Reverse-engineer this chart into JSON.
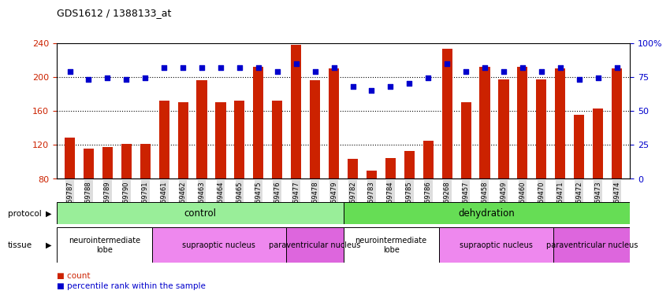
{
  "title": "GDS1612 / 1388133_at",
  "samples": [
    "GSM69787",
    "GSM69788",
    "GSM69789",
    "GSM69790",
    "GSM69791",
    "GSM69461",
    "GSM69462",
    "GSM69463",
    "GSM69464",
    "GSM69465",
    "GSM69475",
    "GSM69476",
    "GSM69477",
    "GSM69478",
    "GSM69479",
    "GSM69782",
    "GSM69783",
    "GSM69784",
    "GSM69785",
    "GSM69786",
    "GSM69268",
    "GSM69457",
    "GSM69458",
    "GSM69459",
    "GSM69460",
    "GSM69470",
    "GSM69471",
    "GSM69472",
    "GSM69473",
    "GSM69474"
  ],
  "bar_values": [
    128,
    115,
    117,
    121,
    121,
    172,
    170,
    196,
    170,
    172,
    212,
    172,
    238,
    196,
    210,
    103,
    89,
    104,
    113,
    125,
    233,
    170,
    212,
    197,
    212,
    197,
    210,
    155,
    163,
    210
  ],
  "percentile_values": [
    79,
    73,
    74,
    73,
    74,
    82,
    82,
    82,
    82,
    82,
    82,
    79,
    85,
    79,
    82,
    68,
    65,
    68,
    70,
    74,
    85,
    79,
    82,
    79,
    82,
    79,
    82,
    73,
    74,
    82
  ],
  "bar_color": "#cc2200",
  "dot_color": "#0000cc",
  "ylim_left": [
    80,
    240
  ],
  "ylim_right": [
    0,
    100
  ],
  "yticks_left": [
    80,
    120,
    160,
    200,
    240
  ],
  "yticks_right": [
    0,
    25,
    50,
    75,
    100
  ],
  "protocol_groups": [
    {
      "label": "control",
      "start": 0,
      "end": 14,
      "color": "#99ee99"
    },
    {
      "label": "dehydration",
      "start": 15,
      "end": 29,
      "color": "#66dd55"
    }
  ],
  "tissue_groups": [
    {
      "label": "neurointermediate\nlobe",
      "start": 0,
      "end": 4,
      "color": "#ffffff"
    },
    {
      "label": "supraoptic nucleus",
      "start": 5,
      "end": 11,
      "color": "#ee88ee"
    },
    {
      "label": "paraventricular nucleus",
      "start": 12,
      "end": 14,
      "color": "#dd66dd"
    },
    {
      "label": "neurointermediate\nlobe",
      "start": 15,
      "end": 19,
      "color": "#ffffff"
    },
    {
      "label": "supraoptic nucleus",
      "start": 20,
      "end": 25,
      "color": "#ee88ee"
    },
    {
      "label": "paraventricular nucleus",
      "start": 26,
      "end": 29,
      "color": "#dd66dd"
    }
  ],
  "bar_color_legend": "#cc2200",
  "dot_color_legend": "#0000cc",
  "axis_label_color_left": "#cc2200",
  "axis_label_color_right": "#0000cc",
  "tick_label_bg": "#dddddd"
}
